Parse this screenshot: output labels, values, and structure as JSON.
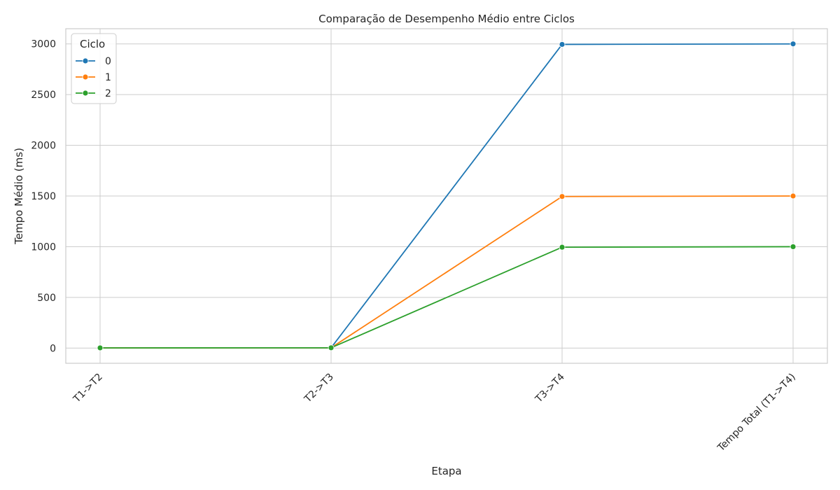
{
  "chart_data": {
    "type": "line",
    "title": "Comparação de Desempenho Médio entre Ciclos",
    "xlabel": "Etapa",
    "ylabel": "Tempo Médio (ms)",
    "categories": [
      "T1->T2",
      "T2->T3",
      "T3->T4",
      "Tempo Total (T1->T4)"
    ],
    "ylim": [
      -150,
      3150
    ],
    "yticks": [
      0,
      500,
      1000,
      1500,
      2000,
      2500,
      3000
    ],
    "grid": true,
    "legend": {
      "title": "Ciclo",
      "placement": "top-left"
    },
    "series": [
      {
        "name": "0",
        "color": "#1f77b4",
        "values": [
          2,
          3,
          2995,
          3000
        ]
      },
      {
        "name": "1",
        "color": "#ff7f0e",
        "values": [
          2,
          3,
          1495,
          1500
        ]
      },
      {
        "name": "2",
        "color": "#2ca02c",
        "values": [
          2,
          3,
          995,
          1000
        ]
      }
    ]
  }
}
